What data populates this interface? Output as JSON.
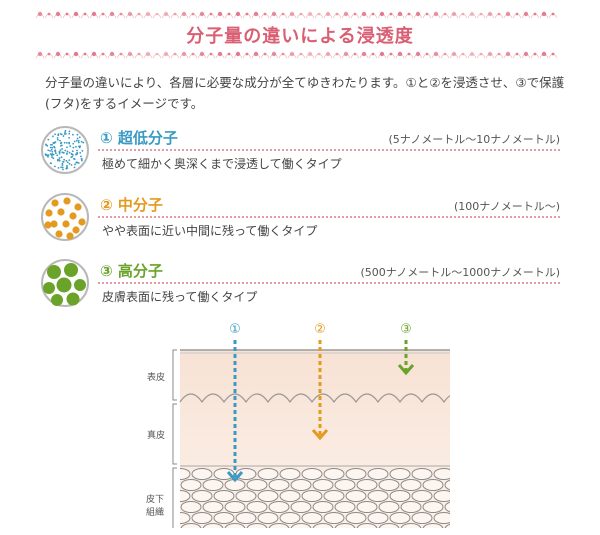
{
  "title": "分子量の違いによる浸透度",
  "intro": "分子量の違いにより、各層に必要な成分が全てゆきわたります。①と②を浸透させ、③で保護(フタ)をするイメージです。",
  "colors": {
    "title": "#d95f73",
    "low": "#3a9ac4",
    "mid": "#e39a1e",
    "high": "#6aa32a",
    "dotted_rule": "#e59aa8",
    "skin_top": "#f9e6da",
    "skin_dermis": "#fbeee5"
  },
  "rows": [
    {
      "marker": "①",
      "label": "① 超低分子",
      "range": "(5ナノメートル〜10ナノメートル)",
      "desc": "極めて細かく奥深くまで浸透して働くタイプ",
      "icon": "fine-dots-circle-icon"
    },
    {
      "marker": "②",
      "label": "② 中分子",
      "range": "(100ナノメートル〜)",
      "desc": "やや表面に近い中間に残って働くタイプ",
      "icon": "medium-dots-circle-icon"
    },
    {
      "marker": "③",
      "label": "③ 高分子",
      "range": "(500ナノメートル〜1000ナノメートル)",
      "desc": "皮膚表面に残って働くタイプ",
      "icon": "large-dots-circle-icon"
    }
  ],
  "diagram": {
    "markers": [
      "①",
      "②",
      "③"
    ],
    "layers": {
      "epidermis": "表皮",
      "dermis": "真皮",
      "subcutis": "皮下組織"
    }
  }
}
